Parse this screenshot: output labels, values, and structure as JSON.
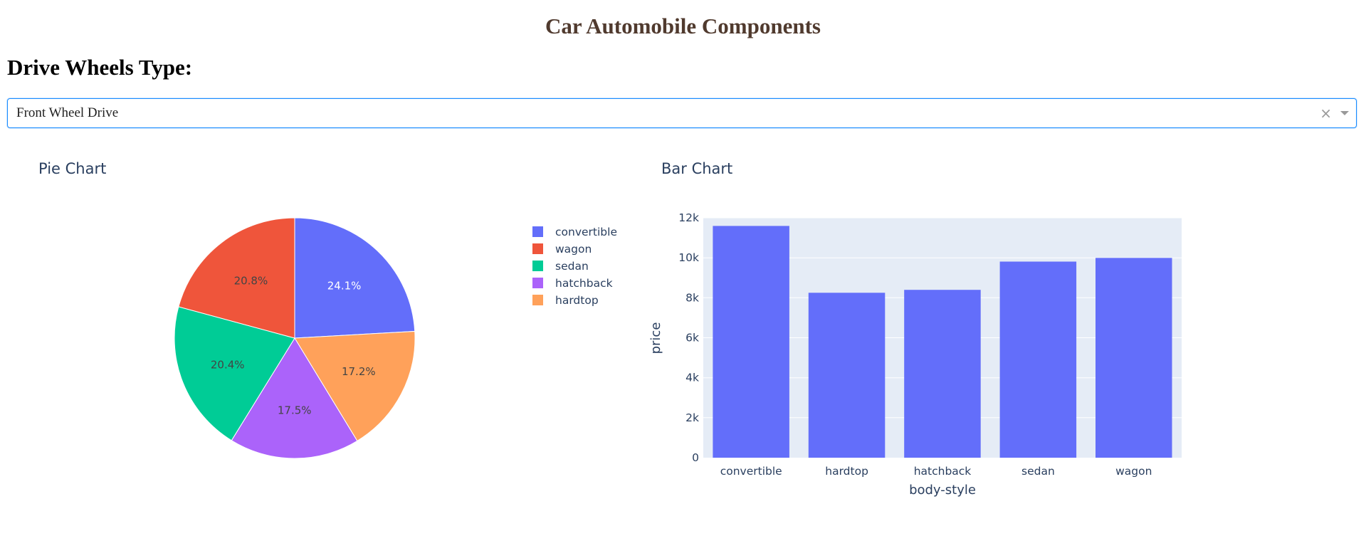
{
  "header": {
    "title": "Car Automobile Components",
    "filter_label": "Drive Wheels Type:"
  },
  "dropdown": {
    "selected": "Front Wheel Drive",
    "clear_symbol": "×"
  },
  "chart_data": [
    {
      "type": "pie",
      "title": "Pie Chart",
      "legend_position": "right",
      "labels": [
        "convertible",
        "wagon",
        "sedan",
        "hatchback",
        "hardtop"
      ],
      "values": [
        24.1,
        20.8,
        20.4,
        17.5,
        17.2
      ],
      "value_labels": [
        "24.1%",
        "20.8%",
        "20.4%",
        "17.5%",
        "17.2%"
      ],
      "colors": [
        "#636efa",
        "#ef553b",
        "#00cc96",
        "#ab63fa",
        "#ffa15a"
      ],
      "slice_order": [
        "convertible",
        "hardtop",
        "hatchback",
        "sedan",
        "wagon"
      ]
    },
    {
      "type": "bar",
      "title": "Bar Chart",
      "categories": [
        "convertible",
        "hardtop",
        "hatchback",
        "sedan",
        "wagon"
      ],
      "values": [
        11595,
        8249,
        8397,
        9811,
        9997
      ],
      "xlabel": "body-style",
      "ylabel": "price",
      "ylim": [
        0,
        12000
      ],
      "yticks": [
        0,
        2000,
        4000,
        6000,
        8000,
        10000,
        12000
      ],
      "ytick_labels": [
        "0",
        "2k",
        "4k",
        "6k",
        "8k",
        "10k",
        "12k"
      ],
      "grid": true,
      "bar_color": "#636efa",
      "plot_bg": "#e5ecf6"
    }
  ]
}
